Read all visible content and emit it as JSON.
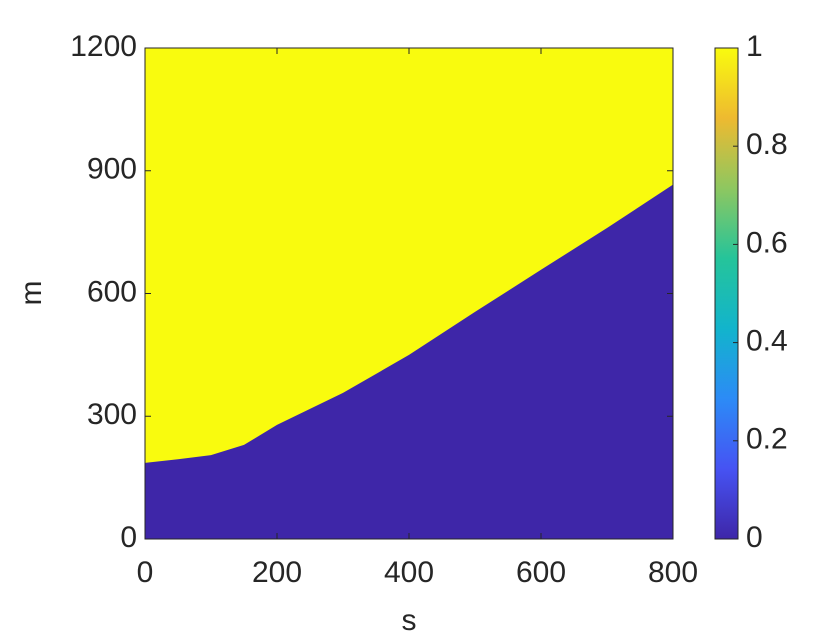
{
  "chart_data": {
    "type": "area",
    "x": [
      0,
      50,
      100,
      150,
      200,
      300,
      400,
      500,
      600,
      700,
      800
    ],
    "series": [
      {
        "color": "#3e26a8",
        "values": [
          186,
          195,
          205,
          230,
          279,
          357,
          450,
          555,
          658,
          760,
          866
        ]
      }
    ],
    "background_color": "#f9fb0e",
    "xlabel": "s",
    "ylabel": "m",
    "xlim": [
      0,
      800
    ],
    "xticks": [
      0,
      200,
      400,
      600,
      800
    ],
    "ylim": [
      0,
      1200
    ],
    "yticks": [
      0,
      300,
      600,
      900,
      1200
    ],
    "colorbar": {
      "clim": [
        0,
        1
      ],
      "ticks": [
        0,
        0.2,
        0.4,
        0.6,
        0.8,
        1
      ],
      "colormap": [
        "#3e26a8",
        "#4653f3",
        "#2c8bf6",
        "#12b4cc",
        "#25c49a",
        "#8ec760",
        "#eeba30",
        "#f9fb0e"
      ]
    }
  }
}
